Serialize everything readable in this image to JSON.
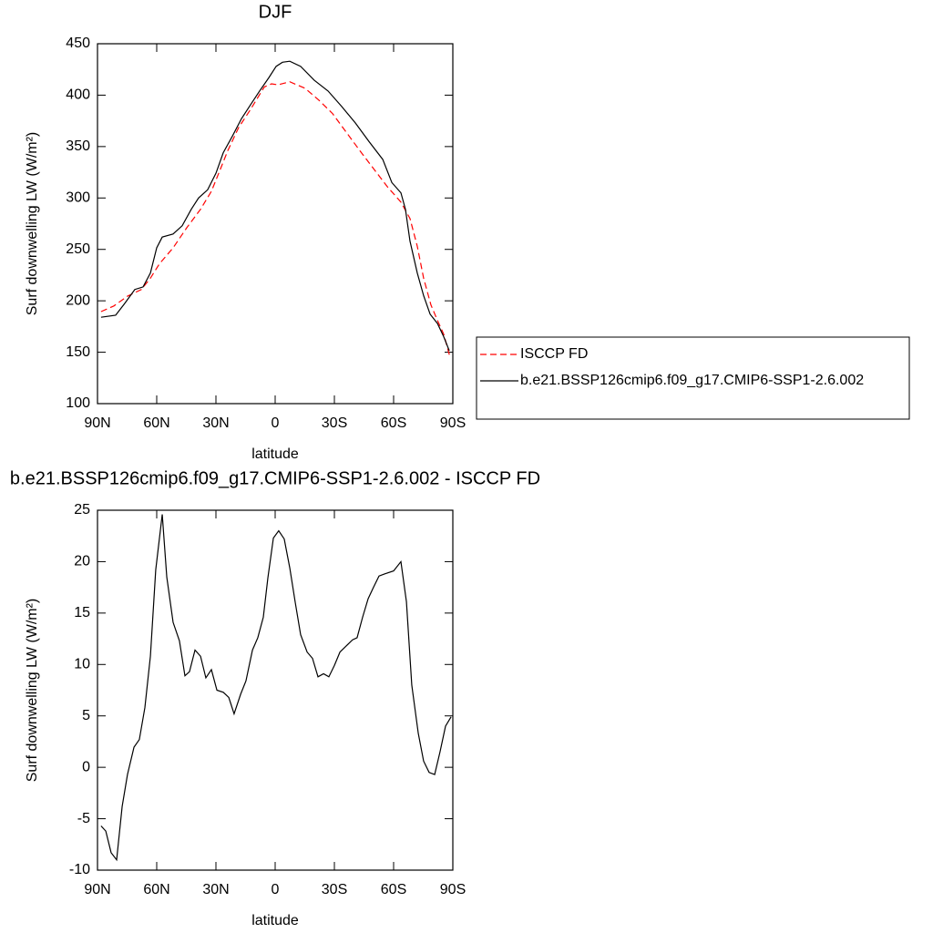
{
  "chart_data": [
    {
      "type": "line",
      "title": "DJF",
      "xlabel": "latitude",
      "ylabel": "Surf downwelling LW (W/m²)",
      "xlim": [
        90,
        -90
      ],
      "xticks": [
        {
          "value": 90,
          "label": "90N"
        },
        {
          "value": 60,
          "label": "60N"
        },
        {
          "value": 30,
          "label": "30N"
        },
        0,
        {
          "value": -30,
          "label": "30S"
        },
        {
          "value": -60,
          "label": "60S"
        },
        {
          "value": -90,
          "label": "90S"
        }
      ],
      "ylim": [
        100,
        450
      ],
      "yticks": [
        100,
        150,
        200,
        250,
        300,
        350,
        400,
        450
      ],
      "legend": "right",
      "series": [
        {
          "name": "ISCCP FD",
          "color": "#ff0000",
          "dash": true,
          "x": [
            88.2,
            81.7,
            74.8,
            67.8,
            63.2,
            58.6,
            51.7,
            44.8,
            37.8,
            32.3,
            28.6,
            24,
            18.5,
            12.5,
            5.5,
            1.8,
            -1.4,
            -7.4,
            -15.2,
            -22.2,
            -29.1,
            -36,
            -42.9,
            -49.8,
            -56.8,
            -63.7,
            -68.3,
            -72,
            -75.2,
            -78.9,
            -82.2,
            -85.4,
            -88.6
          ],
          "values": [
            189.5,
            195,
            204.5,
            211,
            222,
            236,
            251.5,
            271,
            289,
            306.5,
            324,
            346,
            368.5,
            386,
            408,
            411,
            410,
            413,
            406.6,
            395,
            382,
            364,
            346,
            328.6,
            311,
            296,
            280,
            253,
            222,
            196,
            181,
            167.4,
            145
          ]
        },
        {
          "name": "b.e21.BSSP126cmip6.f09_g17.CMIP6-SSP1-2.6.002",
          "color": "#000000",
          "dash": false,
          "x": [
            88.2,
            80.8,
            76.2,
            71.1,
            66.9,
            63.2,
            60,
            57.2,
            51.7,
            47.1,
            42.5,
            38.8,
            34.2,
            30,
            26.3,
            21.7,
            17.1,
            12.5,
            7.9,
            3.2,
            -0.5,
            -3.7,
            -7.4,
            -12.9,
            -19.8,
            -26.8,
            -33.7,
            -40.6,
            -47.5,
            -54.5,
            -59.1,
            -63.7,
            -66,
            -68.3,
            -72,
            -75.2,
            -78.5,
            -82.2,
            -85.4,
            -88.2
          ],
          "values": [
            184,
            186,
            197.5,
            211,
            213.5,
            227,
            251.5,
            262,
            265,
            273,
            289,
            300,
            308,
            324,
            344,
            360,
            377,
            390.6,
            404,
            417,
            428,
            432,
            433,
            428,
            414.5,
            404,
            389,
            373,
            355,
            337.5,
            315,
            305,
            289,
            258,
            227,
            205,
            187,
            178,
            165,
            151.5
          ]
        }
      ]
    },
    {
      "type": "line",
      "title": "b.e21.BSSP126cmip6.f09_g17.CMIP6-SSP1-2.6.002 - ISCCP FD",
      "xlabel": "latitude",
      "ylabel": "Surf downwelling LW (W/m²)",
      "xlim": [
        90,
        -90
      ],
      "xticks": [
        {
          "value": 90,
          "label": "90N"
        },
        {
          "value": 60,
          "label": "60N"
        },
        {
          "value": 30,
          "label": "30N"
        },
        0,
        {
          "value": -30,
          "label": "30S"
        },
        {
          "value": -60,
          "label": "60S"
        },
        {
          "value": -90,
          "label": "90S"
        }
      ],
      "ylim": [
        -10,
        25
      ],
      "yticks": [
        -10,
        -5,
        0,
        5,
        10,
        15,
        20,
        25
      ],
      "series": [
        {
          "color": "#000000",
          "dash": false,
          "x": [
            88.2,
            85.8,
            83.1,
            80.3,
            77.5,
            74.8,
            71.5,
            68.8,
            66,
            63.2,
            60.5,
            57.2,
            54.9,
            51.7,
            48.5,
            45.7,
            43.4,
            40.6,
            37.8,
            35.1,
            32.3,
            29.5,
            26.3,
            23.5,
            20.8,
            17.5,
            14.8,
            11.5,
            8.8,
            6,
            3.7,
            0.9,
            -1.8,
            -4.6,
            -7.4,
            -10.2,
            -12.9,
            -16.2,
            -18.9,
            -21.7,
            -24.5,
            -27.2,
            -30,
            -32.8,
            -36,
            -39.2,
            -41.5,
            -44.3,
            -47.1,
            -49.8,
            -52.6,
            -55.4,
            -60,
            -63.7,
            -66.5,
            -69.2,
            -72.5,
            -75.2,
            -78,
            -80.8,
            -83.5,
            -86.3,
            -89.1
          ],
          "values": [
            -5.7,
            -6.2,
            -8.3,
            -9,
            -3.8,
            -0.7,
            1.96,
            2.7,
            5.8,
            10.8,
            19.2,
            24.6,
            18.5,
            14.1,
            12.3,
            8.9,
            9.3,
            11.4,
            10.8,
            8.7,
            9.5,
            7.5,
            7.3,
            6.8,
            5.2,
            7.1,
            8.4,
            11.4,
            12.6,
            14.6,
            18.4,
            22.3,
            23,
            22.2,
            19.4,
            16,
            12.9,
            11.2,
            10.6,
            8.8,
            9.1,
            8.8,
            9.9,
            11.2,
            11.8,
            12.4,
            12.6,
            14.6,
            16.4,
            17.5,
            18.6,
            18.8,
            19.1,
            20,
            16.1,
            8,
            3.3,
            0.6,
            -0.5,
            -0.7,
            1.5,
            4,
            4.9
          ]
        }
      ]
    }
  ]
}
